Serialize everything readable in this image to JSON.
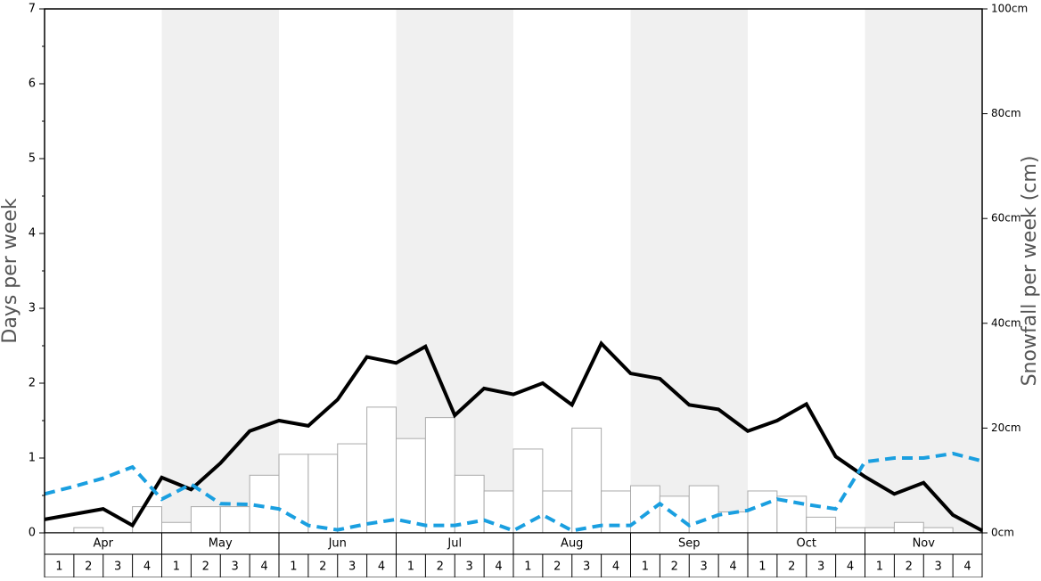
{
  "chart_data": {
    "type": "bar",
    "months": [
      "Apr",
      "May",
      "Jun",
      "Jul",
      "Aug",
      "Sep",
      "Oct",
      "Nov"
    ],
    "week_labels": [
      "1",
      "2",
      "3",
      "4"
    ],
    "ylabel": "Days per week",
    "y2label": "Snowfall per week (cm)",
    "ylim": [
      0,
      7
    ],
    "yticks": [
      0,
      1,
      2,
      3,
      4,
      5,
      6,
      7
    ],
    "y2lim": [
      0,
      100
    ],
    "y2ticks": [
      {
        "value": 0,
        "label": "0cm"
      },
      {
        "value": 20,
        "label": "20cm"
      },
      {
        "value": 40,
        "label": "40cm"
      },
      {
        "value": 60,
        "label": "60cm"
      },
      {
        "value": 80,
        "label": "80cm"
      },
      {
        "value": 100,
        "label": "100cm"
      }
    ],
    "band_color": "#f0f0f0",
    "series": [
      {
        "type": "bar",
        "axis": "y2",
        "color": "#ffffff",
        "edge": "#aaaaaa",
        "values": [
          0,
          1,
          0,
          5,
          2,
          5,
          5,
          11,
          15,
          15,
          17,
          24,
          18,
          22,
          11,
          8,
          16,
          8,
          20,
          8,
          9,
          7,
          9,
          4,
          8,
          7,
          3,
          1,
          1,
          2,
          1,
          0
        ]
      },
      {
        "type": "line",
        "color": "#000000",
        "dashed": false,
        "values": [
          0.18,
          0.25,
          0.32,
          0.1,
          0.74,
          0.58,
          0.93,
          1.36,
          1.5,
          1.43,
          1.78,
          2.35,
          2.27,
          2.49,
          1.57,
          1.93,
          1.85,
          2.0,
          1.71,
          2.53,
          2.13,
          2.06,
          1.71,
          1.65,
          1.36,
          1.5,
          1.72,
          1.02,
          0.75,
          0.52,
          0.67,
          0.24,
          0.03
        ]
      },
      {
        "type": "line",
        "color": "#1a9fe0",
        "dashed": true,
        "values": [
          0.52,
          0.62,
          0.73,
          0.88,
          0.45,
          0.65,
          0.39,
          0.38,
          0.32,
          0.1,
          0.04,
          0.12,
          0.18,
          0.1,
          0.1,
          0.17,
          0.03,
          0.24,
          0.03,
          0.1,
          0.1,
          0.39,
          0.1,
          0.24,
          0.3,
          0.45,
          0.38,
          0.32,
          0.95,
          1.0,
          1.0,
          1.06,
          0.96
        ]
      }
    ]
  }
}
